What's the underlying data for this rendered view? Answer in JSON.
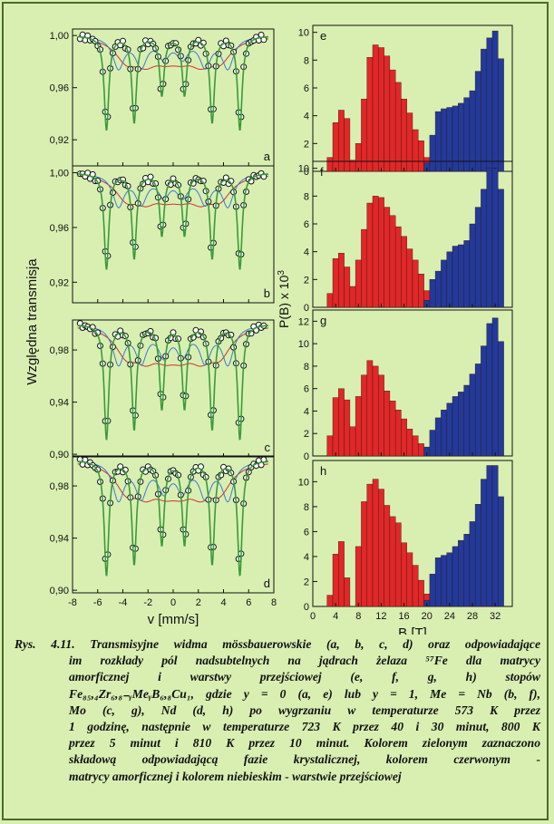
{
  "chart_data": [
    {
      "id": "a",
      "type": "scatter",
      "panel_label": "a",
      "ylim": [
        0.9,
        1.005
      ],
      "yticks": [
        "0,92",
        "0,96",
        "1,00"
      ],
      "ytick_values": [
        0.92,
        0.96,
        1.0
      ],
      "xlim": [
        -8,
        8
      ],
      "lines": [
        {
          "pos": -5.3,
          "depth": 0.072,
          "width": 0.22
        },
        {
          "pos": -3.1,
          "depth": 0.066,
          "width": 0.22
        },
        {
          "pos": -0.9,
          "depth": 0.045,
          "width": 0.22
        },
        {
          "pos": 0.9,
          "depth": 0.045,
          "width": 0.22
        },
        {
          "pos": 3.1,
          "depth": 0.066,
          "width": 0.22
        },
        {
          "pos": 5.3,
          "depth": 0.072,
          "width": 0.22
        }
      ],
      "series": [
        {
          "color": "#3a9a3a",
          "role": "fit"
        },
        {
          "color": "#3a7ad0",
          "role": "component"
        },
        {
          "color": "#d03030",
          "role": "component"
        }
      ]
    },
    {
      "id": "b",
      "type": "scatter",
      "panel_label": "b",
      "ylim": [
        0.905,
        1.005
      ],
      "yticks": [
        "0,92",
        "0,96",
        "1,00"
      ],
      "ytick_values": [
        0.92,
        0.96,
        1.0
      ],
      "xlim": [
        -8,
        8
      ],
      "lines": [
        {
          "pos": -5.3,
          "depth": 0.07,
          "width": 0.22
        },
        {
          "pos": -3.1,
          "depth": 0.062,
          "width": 0.22
        },
        {
          "pos": -0.9,
          "depth": 0.045,
          "width": 0.22
        },
        {
          "pos": 0.9,
          "depth": 0.045,
          "width": 0.22
        },
        {
          "pos": 3.1,
          "depth": 0.062,
          "width": 0.22
        },
        {
          "pos": 5.3,
          "depth": 0.07,
          "width": 0.22
        }
      ],
      "series": [
        {
          "color": "#3a9a3a",
          "role": "fit"
        },
        {
          "color": "#3a7ad0",
          "role": "component"
        },
        {
          "color": "#d03030",
          "role": "component"
        }
      ]
    },
    {
      "id": "c",
      "type": "scatter",
      "panel_label": "c",
      "ylim": [
        0.898,
        1.003
      ],
      "yticks": [
        "0,90",
        "0,94",
        "0,98"
      ],
      "ytick_values": [
        0.9,
        0.94,
        0.98
      ],
      "xlim": [
        -8,
        8
      ],
      "lines": [
        {
          "pos": -5.3,
          "depth": 0.088,
          "width": 0.22
        },
        {
          "pos": -3.1,
          "depth": 0.08,
          "width": 0.22
        },
        {
          "pos": -0.9,
          "depth": 0.064,
          "width": 0.22
        },
        {
          "pos": 0.9,
          "depth": 0.064,
          "width": 0.22
        },
        {
          "pos": 3.1,
          "depth": 0.08,
          "width": 0.22
        },
        {
          "pos": 5.3,
          "depth": 0.088,
          "width": 0.22
        }
      ],
      "series": [
        {
          "color": "#3a9a3a",
          "role": "fit"
        },
        {
          "color": "#3a7ad0",
          "role": "component"
        },
        {
          "color": "#d03030",
          "role": "component"
        }
      ]
    },
    {
      "id": "d",
      "type": "scatter",
      "panel_label": "d",
      "ylim": [
        0.898,
        1.003
      ],
      "yticks": [
        "0,90",
        "0,94",
        "0,98"
      ],
      "ytick_values": [
        0.9,
        0.94,
        0.98
      ],
      "xlim": [
        -8,
        8
      ],
      "xticks": [
        "-8",
        "-6",
        "-4",
        "-2",
        "0",
        "2",
        "4",
        "6",
        "8"
      ],
      "xlabel": "v [mm/s]",
      "lines": [
        {
          "pos": -5.3,
          "depth": 0.088,
          "width": 0.22
        },
        {
          "pos": -3.1,
          "depth": 0.079,
          "width": 0.22
        },
        {
          "pos": -0.9,
          "depth": 0.064,
          "width": 0.22
        },
        {
          "pos": 0.9,
          "depth": 0.064,
          "width": 0.22
        },
        {
          "pos": 3.1,
          "depth": 0.079,
          "width": 0.22
        },
        {
          "pos": 5.3,
          "depth": 0.088,
          "width": 0.22
        }
      ],
      "series": [
        {
          "color": "#3a9a3a",
          "role": "fit"
        },
        {
          "color": "#3a7ad0",
          "role": "component"
        },
        {
          "color": "#d03030",
          "role": "component"
        }
      ]
    },
    {
      "id": "e",
      "type": "bar",
      "panel_label": "e",
      "ylim": [
        0,
        10.5
      ],
      "yticks": [
        "0",
        "2",
        "4",
        "6",
        "8",
        "10"
      ],
      "ytick_values": [
        0,
        2,
        4,
        6,
        8,
        10
      ],
      "xlim": [
        0,
        35
      ],
      "bin_width": 1,
      "red": [
        [
          3,
          1.0
        ],
        [
          4,
          3.5
        ],
        [
          5,
          4.4
        ],
        [
          6,
          3.8
        ],
        [
          7,
          0.8
        ],
        [
          8,
          2.0
        ],
        [
          9,
          5.2
        ],
        [
          10,
          8.2
        ],
        [
          11,
          9.1
        ],
        [
          12,
          8.9
        ],
        [
          13,
          8.3
        ],
        [
          14,
          7.3
        ],
        [
          15,
          6.4
        ],
        [
          16,
          5.2
        ],
        [
          17,
          4.2
        ],
        [
          18,
          3.0
        ],
        [
          19,
          2.2
        ],
        [
          20,
          1.0
        ]
      ],
      "blue": [
        [
          20,
          0.6
        ],
        [
          21,
          2.6
        ],
        [
          22,
          4.3
        ],
        [
          23,
          4.5
        ],
        [
          24,
          4.6
        ],
        [
          25,
          4.7
        ],
        [
          26,
          4.9
        ],
        [
          27,
          5.3
        ],
        [
          28,
          5.8
        ],
        [
          29,
          7.2
        ],
        [
          30,
          8.8
        ],
        [
          31,
          9.6
        ],
        [
          32,
          10.1
        ],
        [
          33,
          8.1
        ]
      ]
    },
    {
      "id": "f",
      "type": "bar",
      "panel_label": "f",
      "ylim": [
        0,
        10.5
      ],
      "yticks": [
        "0",
        "2",
        "4",
        "6",
        "8",
        "10"
      ],
      "ytick_values": [
        0,
        2,
        4,
        6,
        8,
        10
      ],
      "xlim": [
        0,
        35
      ],
      "bin_width": 1,
      "red": [
        [
          3,
          1.0
        ],
        [
          4,
          3.5
        ],
        [
          5,
          3.9
        ],
        [
          6,
          2.9
        ],
        [
          7,
          1.5
        ],
        [
          8,
          3.4
        ],
        [
          9,
          5.6
        ],
        [
          10,
          7.5
        ],
        [
          11,
          8.0
        ],
        [
          12,
          7.9
        ],
        [
          13,
          7.2
        ],
        [
          14,
          6.6
        ],
        [
          15,
          5.8
        ],
        [
          16,
          5.1
        ],
        [
          17,
          4.2
        ],
        [
          18,
          3.4
        ],
        [
          19,
          2.4
        ],
        [
          20,
          1.2
        ]
      ],
      "blue": [
        [
          20,
          0.5
        ],
        [
          21,
          2.0
        ],
        [
          22,
          2.6
        ],
        [
          23,
          3.4
        ],
        [
          24,
          4.0
        ],
        [
          25,
          4.4
        ],
        [
          26,
          4.5
        ],
        [
          27,
          4.8
        ],
        [
          28,
          6.0
        ],
        [
          29,
          7.2
        ],
        [
          30,
          8.5
        ],
        [
          31,
          10.0
        ],
        [
          32,
          10.0
        ],
        [
          33,
          8.5
        ]
      ]
    },
    {
      "id": "g",
      "type": "bar",
      "panel_label": "g",
      "ylim": [
        0,
        13
      ],
      "yticks": [
        "0",
        "2",
        "4",
        "6",
        "8",
        "10",
        "12"
      ],
      "ytick_values": [
        0,
        2,
        4,
        6,
        8,
        10,
        12
      ],
      "xlim": [
        0,
        35
      ],
      "bin_width": 1,
      "red": [
        [
          3,
          1.8
        ],
        [
          4,
          5.2
        ],
        [
          5,
          6.0
        ],
        [
          6,
          5.0
        ],
        [
          7,
          2.6
        ],
        [
          8,
          5.3
        ],
        [
          9,
          7.2
        ],
        [
          10,
          8.5
        ],
        [
          11,
          8.0
        ],
        [
          12,
          7.2
        ],
        [
          13,
          5.8
        ],
        [
          14,
          4.9
        ],
        [
          15,
          4.1
        ],
        [
          16,
          3.3
        ],
        [
          17,
          2.4
        ],
        [
          18,
          1.8
        ],
        [
          19,
          1.1
        ]
      ],
      "blue": [
        [
          20,
          0.8
        ],
        [
          21,
          2.3
        ],
        [
          22,
          3.4
        ],
        [
          23,
          4.1
        ],
        [
          24,
          4.7
        ],
        [
          25,
          5.3
        ],
        [
          26,
          5.7
        ],
        [
          27,
          6.3
        ],
        [
          28,
          7.3
        ],
        [
          29,
          8.2
        ],
        [
          30,
          9.8
        ],
        [
          31,
          11.8
        ],
        [
          32,
          12.3
        ],
        [
          33,
          10.2
        ]
      ]
    },
    {
      "id": "h",
      "type": "bar",
      "panel_label": "h",
      "ylim": [
        0,
        11.7
      ],
      "yticks": [
        "0",
        "2",
        "4",
        "6",
        "8",
        "10"
      ],
      "ytick_values": [
        0,
        2,
        4,
        6,
        8,
        10
      ],
      "xlim": [
        0,
        35
      ],
      "bin_width": 1,
      "xticks": [
        "0",
        "4",
        "8",
        "12",
        "16",
        "20",
        "24",
        "28",
        "32"
      ],
      "xlabel": "B [T]",
      "red": [
        [
          3,
          0.9
        ],
        [
          4,
          4.2
        ],
        [
          5,
          5.2
        ],
        [
          6,
          2.3
        ],
        [
          8,
          4.8
        ],
        [
          9,
          8.4
        ],
        [
          10,
          9.8
        ],
        [
          11,
          10.2
        ],
        [
          12,
          9.4
        ],
        [
          13,
          8.1
        ],
        [
          14,
          7.2
        ],
        [
          15,
          6.7
        ],
        [
          16,
          5.1
        ],
        [
          17,
          4.3
        ],
        [
          18,
          3.3
        ],
        [
          19,
          2.1
        ],
        [
          20,
          1.0
        ]
      ],
      "blue": [
        [
          20,
          0.5
        ],
        [
          21,
          2.6
        ],
        [
          22,
          3.9
        ],
        [
          23,
          4.1
        ],
        [
          24,
          4.3
        ],
        [
          25,
          4.8
        ],
        [
          26,
          5.3
        ],
        [
          27,
          5.8
        ],
        [
          28,
          6.8
        ],
        [
          29,
          8.2
        ],
        [
          30,
          10.2
        ],
        [
          31,
          11.3
        ],
        [
          32,
          11.3
        ],
        [
          33,
          8.8
        ]
      ]
    }
  ],
  "axes": {
    "left_ylabel": "Względna transmisja",
    "right_ylabel": "P(B) x 10",
    "right_ylabel_sup": "3"
  },
  "caption": {
    "lines": [
      "Rys. 4.11. Transmisyjne widma mössbauerowskie (a, b, c, d) oraz odpowiadające",
      "im rozkłady pól nadsubtelnych na jądrach żelaza ⁵⁷Fe dla matrycy",
      "amorficznej   i warstwy przejściowej (e, f, g, h) stopów",
      "Fe₈₅,₄Zr₆,₈₋ᵧMeᵧB₆,₈Cu₁, gdzie y = 0 (a, e) lub y = 1, Me = Nb (b, f),",
      "Mo (c, g), Nd (d, h)  po wygrzaniu w temperaturze 573 K przez",
      "1 godzinę, następnie w temperaturze 723 K przez 40 i 30 minut, 800 K",
      "przez 5 minut i 810 K przez 10 minut. Kolorem zielonym zaznaczono",
      "składową odpowiadającą fazie krystalicznej,  kolorem czerwonym -",
      "matrycy amorficznej i kolorem niebieskim - warstwie przejściowej"
    ]
  },
  "colors": {
    "background": "#d9efb2",
    "bar_red": "#e02828",
    "bar_blue": "#223a9a",
    "fit_green": "#3a9a3a",
    "comp_blue": "#3a7ad0",
    "comp_red": "#d03030"
  }
}
